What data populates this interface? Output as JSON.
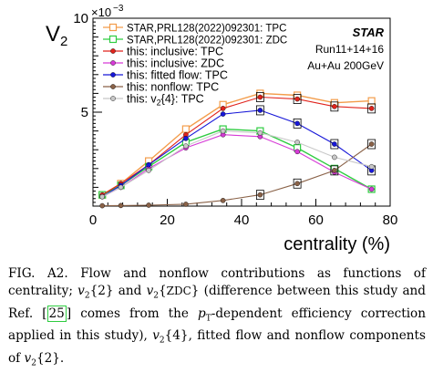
{
  "chart_data": {
    "type": "scatter",
    "title": "",
    "xlabel": "centrality (%)",
    "ylabel": "V",
    "ylabel_sub": "2",
    "y_exponent_label": "×10",
    "y_exponent": "−3",
    "xlim": [
      0,
      80
    ],
    "ylim": [
      0,
      0.01
    ],
    "xticks": [
      0,
      20,
      40,
      60,
      80
    ],
    "yticks": [
      {
        "value": 0.005,
        "label": "5"
      },
      {
        "value": 0.01,
        "label": "10"
      }
    ],
    "annotations": {
      "experiment": "STAR",
      "run": "Run11+14+16",
      "system": "Au+Au 200GeV"
    },
    "series": [
      {
        "name": "STAR,PRL128(2022)092301: TPC",
        "color": "#f39c4a",
        "marker": "open-square-line",
        "x": [
          2.5,
          7.5,
          15,
          25,
          35,
          45,
          55,
          65,
          75
        ],
        "y": [
          0.0006,
          0.0012,
          0.0024,
          0.0041,
          0.0054,
          0.006,
          0.0059,
          0.0055,
          0.0056
        ]
      },
      {
        "name": "STAR,PRL128(2022)092301: ZDC",
        "color": "#2ecc40",
        "marker": "open-square-line",
        "x": [
          2.5,
          7.5,
          15,
          25,
          35,
          45,
          55,
          65,
          75
        ],
        "y": [
          0.0006,
          0.0011,
          0.0021,
          0.0034,
          0.0041,
          0.004,
          0.0031,
          0.002,
          0.0009
        ]
      },
      {
        "name": "this: inclusive: TPC",
        "color": "#e0231c",
        "marker": "filled-circle",
        "x": [
          2.5,
          7.5,
          15,
          25,
          35,
          45,
          55,
          65,
          75
        ],
        "y": [
          0.0006,
          0.0012,
          0.0022,
          0.0038,
          0.0052,
          0.0058,
          0.0057,
          0.0053,
          0.0052
        ]
      },
      {
        "name": "this: inclusive: ZDC",
        "color": "#d63ad6",
        "marker": "filled-circle",
        "x": [
          2.5,
          7.5,
          15,
          25,
          35,
          45,
          55,
          65,
          75
        ],
        "y": [
          0.0005,
          0.001,
          0.002,
          0.0031,
          0.0038,
          0.0037,
          0.0029,
          0.0018,
          0.0009
        ]
      },
      {
        "name": "this: fitted flow: TPC",
        "color": "#1717d8",
        "marker": "filled-circle",
        "x": [
          2.5,
          7.5,
          15,
          25,
          35,
          45,
          55,
          65,
          75
        ],
        "y": [
          0.0005,
          0.0011,
          0.0022,
          0.0036,
          0.0049,
          0.0051,
          0.0044,
          0.0033,
          0.0019
        ]
      },
      {
        "name": "this: nonflow: TPC",
        "color": "#8a6248",
        "marker": "filled-circle",
        "x": [
          2.5,
          7.5,
          15,
          25,
          35,
          45,
          55,
          65,
          75
        ],
        "y": [
          2e-05,
          3e-05,
          5e-05,
          0.0001,
          0.0003,
          0.0006,
          0.0012,
          0.0019,
          0.0033
        ]
      },
      {
        "name": "this: v",
        "name_sub": "2",
        "name_tail": "{4}: TPC",
        "color": "#c8c8c8",
        "marker": "filled-circle",
        "x": [
          2.5,
          7.5,
          15,
          25,
          35,
          45,
          55,
          65,
          75
        ],
        "y": [
          0.0005,
          0.001,
          0.0019,
          0.0032,
          0.004,
          0.0039,
          0.0034,
          0.0026,
          0.0021
        ]
      }
    ]
  },
  "caption": {
    "p1": "FIG. A2.  Flow and nonflow contributions as functions of centrality; ",
    "v": "v",
    "two": "2",
    "b2": "{2} and ",
    "b3": "{",
    "zdc": "ZDC",
    "p2": "} (difference between this study and Ref. [",
    "ref": "25",
    "p3": "] comes from the ",
    "pt": "p",
    "T": "T",
    "p4": "-dependent efficiency correction applied in this study), ",
    "b4": "{4}, fitted flow and nonflow components of ",
    "b5": "{2}."
  }
}
